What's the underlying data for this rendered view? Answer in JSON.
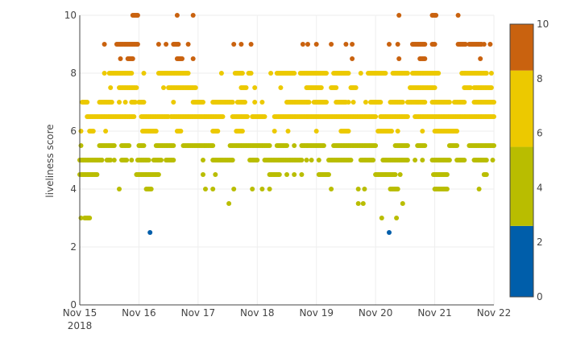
{
  "chart_data": {
    "type": "scatter",
    "title": "",
    "xlabel": "",
    "ylabel": "liveliness score",
    "x_axis": {
      "type": "date",
      "range": [
        "2018-11-15",
        "2018-11-22"
      ],
      "ticks": [
        {
          "value": "2018-11-15",
          "label": "Nov 15",
          "sublabel": "2018"
        },
        {
          "value": "2018-11-16",
          "label": "Nov 16",
          "sublabel": ""
        },
        {
          "value": "2018-11-17",
          "label": "Nov 17",
          "sublabel": ""
        },
        {
          "value": "2018-11-18",
          "label": "Nov 18",
          "sublabel": ""
        },
        {
          "value": "2018-11-19",
          "label": "Nov 19",
          "sublabel": ""
        },
        {
          "value": "2018-11-20",
          "label": "Nov 20",
          "sublabel": ""
        },
        {
          "value": "2018-11-21",
          "label": "Nov 21",
          "sublabel": ""
        },
        {
          "value": "2018-11-22",
          "label": "Nov 22",
          "sublabel": ""
        }
      ]
    },
    "y_axis": {
      "range": [
        0,
        10
      ],
      "ticks": [
        0,
        2,
        4,
        6,
        8,
        10
      ]
    },
    "grid": true,
    "marker_color_by": "y",
    "colorbar": {
      "placement": "right",
      "range": [
        0,
        10
      ],
      "ticks": [
        0,
        2,
        4,
        6,
        8,
        10
      ],
      "bands": [
        {
          "from": 0,
          "to": 2.6,
          "color": "#005eaa"
        },
        {
          "from": 2.6,
          "to": 5.5,
          "color": "#b9bd00"
        },
        {
          "from": 5.5,
          "to": 8.3,
          "color": "#ecc900"
        },
        {
          "from": 8.3,
          "to": 10,
          "color": "#c9620f"
        }
      ]
    },
    "series": [
      {
        "segments": [
          {
            "y": 10,
            "x": [
              [
                "2018-11-15 21:30",
                "2018-11-15 23:30"
              ],
              [
                "2018-11-16 15:30"
              ],
              [
                "2018-11-16 22:00"
              ],
              [
                "2018-11-20 09:30"
              ],
              [
                "2018-11-20 23:00",
                "2018-11-21 00:30"
              ],
              [
                "2018-11-21 09:30"
              ]
            ]
          },
          {
            "y": 9,
            "x": [
              [
                "2018-11-15 10:00"
              ],
              [
                "2018-11-15 15:00",
                "2018-11-15 23:59"
              ],
              [
                "2018-11-16 08:00"
              ],
              [
                "2018-11-16 11:00"
              ],
              [
                "2018-11-16 14:00",
                "2018-11-16 16:00"
              ],
              [
                "2018-11-16 20:00"
              ],
              [
                "2018-11-17 14:30"
              ],
              [
                "2018-11-17 17:30"
              ],
              [
                "2018-11-17 21:30"
              ],
              [
                "2018-11-18 18:30"
              ],
              [
                "2018-11-18 20:30"
              ],
              [
                "2018-11-19 00:00"
              ],
              [
                "2018-11-19 06:00"
              ],
              [
                "2018-11-19 12:00"
              ],
              [
                "2018-11-19 14:30"
              ],
              [
                "2018-11-20 05:30"
              ],
              [
                "2018-11-20 09:00"
              ],
              [
                "2018-11-20 15:00",
                "2018-11-20 20:00"
              ],
              [
                "2018-11-20 23:00",
                "2018-11-21 00:00"
              ],
              [
                "2018-11-21 09:30",
                "2018-11-21 12:30"
              ],
              [
                "2018-11-21 14:00",
                "2018-11-21 19:00"
              ],
              [
                "2018-11-21 20:00"
              ],
              [
                "2018-11-21 22:30"
              ]
            ]
          },
          {
            "y": 8.5,
            "x": [
              [
                "2018-11-15 16:30"
              ],
              [
                "2018-11-15 19:30",
                "2018-11-15 21:30"
              ],
              [
                "2018-11-16 15:30",
                "2018-11-16 17:30"
              ],
              [
                "2018-11-16 22:00"
              ],
              [
                "2018-11-19 14:30"
              ],
              [
                "2018-11-20 09:30"
              ],
              [
                "2018-11-20 18:00",
                "2018-11-20 20:00"
              ],
              [
                "2018-11-21 18:30"
              ]
            ]
          },
          {
            "y": 8,
            "x": [
              [
                "2018-11-15 10:00"
              ],
              [
                "2018-11-15 12:00",
                "2018-11-15 21:00"
              ],
              [
                "2018-11-16 02:00"
              ],
              [
                "2018-11-16 08:00",
                "2018-11-16 20:00"
              ],
              [
                "2018-11-17 09:30"
              ],
              [
                "2018-11-17 15:00",
                "2018-11-17 18:00"
              ],
              [
                "2018-11-17 20:30",
                "2018-11-17 21:30"
              ],
              [
                "2018-11-18 05:30"
              ],
              [
                "2018-11-18 08:00",
                "2018-11-18 15:00"
              ],
              [
                "2018-11-18 17:30",
                "2018-11-19 04:00"
              ],
              [
                "2018-11-19 07:00",
                "2018-11-19 13:00"
              ],
              [
                "2018-11-19 18:00"
              ],
              [
                "2018-11-19 21:00",
                "2018-11-20 04:00"
              ],
              [
                "2018-11-20 07:00",
                "2018-11-20 13:00"
              ],
              [
                "2018-11-20 15:00",
                "2018-11-21 01:30"
              ],
              [
                "2018-11-21 11:00",
                "2018-11-21 21:00"
              ],
              [
                "2018-11-21 23:00"
              ]
            ]
          },
          {
            "y": 7.5,
            "x": [
              [
                "2018-11-15 12:30"
              ],
              [
                "2018-11-15 16:00",
                "2018-11-15 23:00"
              ],
              [
                "2018-11-16 10:00"
              ],
              [
                "2018-11-16 12:00",
                "2018-11-16 23:00"
              ],
              [
                "2018-11-17 17:30",
                "2018-11-17 19:30"
              ],
              [
                "2018-11-17 23:00"
              ],
              [
                "2018-11-18 09:30"
              ],
              [
                "2018-11-18 20:00",
                "2018-11-19 02:00"
              ],
              [
                "2018-11-19 06:00",
                "2018-11-19 08:00"
              ],
              [
                "2018-11-19 14:00",
                "2018-11-19 16:00"
              ],
              [
                "2018-11-20 14:00",
                "2018-11-21 00:00"
              ],
              [
                "2018-11-21 12:00",
                "2018-11-21 14:30"
              ],
              [
                "2018-11-21 16:00",
                "2018-11-21 23:00"
              ]
            ]
          },
          {
            "y": 7,
            "x": [
              [
                "2018-11-15 01:00",
                "2018-11-15 03:00"
              ],
              [
                "2018-11-15 08:00",
                "2018-11-15 13:00"
              ],
              [
                "2018-11-15 16:00"
              ],
              [
                "2018-11-15 18:30"
              ],
              [
                "2018-11-15 21:00",
                "2018-11-15 22:30"
              ],
              [
                "2018-11-16 00:00",
                "2018-11-16 02:00"
              ],
              [
                "2018-11-16 14:00"
              ],
              [
                "2018-11-16 22:00",
                "2018-11-17 02:00"
              ],
              [
                "2018-11-17 06:00",
                "2018-11-17 14:00"
              ],
              [
                "2018-11-17 16:00",
                "2018-11-17 19:00"
              ],
              [
                "2018-11-17 23:00"
              ],
              [
                "2018-11-18 02:00"
              ],
              [
                "2018-11-18 12:00",
                "2018-11-18 21:00"
              ],
              [
                "2018-11-18 23:00",
                "2018-11-19 04:00"
              ],
              [
                "2018-11-19 08:00",
                "2018-11-19 12:00"
              ],
              [
                "2018-11-19 13:00"
              ],
              [
                "2018-11-19 15:00"
              ],
              [
                "2018-11-19 20:00"
              ],
              [
                "2018-11-19 22:00",
                "2018-11-20 02:00"
              ],
              [
                "2018-11-20 06:00",
                "2018-11-20 11:00"
              ],
              [
                "2018-11-20 13:00",
                "2018-11-20 20:00"
              ],
              [
                "2018-11-20 23:00",
                "2018-11-21 06:00"
              ],
              [
                "2018-11-21 08:00",
                "2018-11-21 12:00"
              ],
              [
                "2018-11-21 16:00",
                "2018-11-22 00:00"
              ]
            ]
          },
          {
            "y": 6.5,
            "x": [
              [
                "2018-11-15 03:00",
                "2018-11-15 22:00"
              ],
              [
                "2018-11-16 01:00",
                "2018-11-16 12:00"
              ],
              [
                "2018-11-16 13:00",
                "2018-11-17 10:00"
              ],
              [
                "2018-11-17 14:00",
                "2018-11-17 20:00"
              ],
              [
                "2018-11-17 22:00",
                "2018-11-18 03:00"
              ],
              [
                "2018-11-18 07:00",
                "2018-11-20 00:00"
              ],
              [
                "2018-11-20 02:00",
                "2018-11-20 13:00"
              ],
              [
                "2018-11-20 16:00",
                "2018-11-22 00:00"
              ]
            ]
          },
          {
            "y": 6,
            "x": [
              [
                "2018-11-15 00:30"
              ],
              [
                "2018-11-15 04:00",
                "2018-11-15 05:30"
              ],
              [
                "2018-11-15 10:30"
              ],
              [
                "2018-11-16 01:30",
                "2018-11-16 07:00"
              ],
              [
                "2018-11-16 15:30",
                "2018-11-16 17:00"
              ],
              [
                "2018-11-17 06:00",
                "2018-11-17 08:00"
              ],
              [
                "2018-11-17 15:30",
                "2018-11-17 18:00"
              ],
              [
                "2018-11-18 07:00"
              ],
              [
                "2018-11-18 12:30"
              ],
              [
                "2018-11-19 00:00"
              ],
              [
                "2018-11-19 10:00",
                "2018-11-19 13:00"
              ],
              [
                "2018-11-20 01:00",
                "2018-11-20 06:30"
              ],
              [
                "2018-11-20 09:00"
              ],
              [
                "2018-11-20 19:00"
              ],
              [
                "2018-11-21 00:00",
                "2018-11-21 09:00"
              ]
            ]
          },
          {
            "y": 5.5,
            "x": [
              [
                "2018-11-15 00:30"
              ],
              [
                "2018-11-15 08:00",
                "2018-11-15 14:00"
              ],
              [
                "2018-11-15 17:00",
                "2018-11-15 20:00"
              ],
              [
                "2018-11-16 00:00",
                "2018-11-16 02:00"
              ],
              [
                "2018-11-16 07:00",
                "2018-11-16 14:00"
              ],
              [
                "2018-11-16 18:00",
                "2018-11-17 06:00"
              ],
              [
                "2018-11-17 13:00",
                "2018-11-18 05:00"
              ],
              [
                "2018-11-18 08:00",
                "2018-11-18 12:00"
              ],
              [
                "2018-11-18 15:00"
              ],
              [
                "2018-11-18 18:00",
                "2018-11-19 03:00"
              ],
              [
                "2018-11-19 07:00",
                "2018-11-20 00:00"
              ],
              [
                "2018-11-20 08:00",
                "2018-11-20 13:00"
              ],
              [
                "2018-11-20 17:00",
                "2018-11-20 20:00"
              ],
              [
                "2018-11-21 06:00",
                "2018-11-21 09:00"
              ],
              [
                "2018-11-21 14:00",
                "2018-11-22 00:00"
              ]
            ]
          },
          {
            "y": 5,
            "x": [
              [
                "2018-11-15 00:00",
                "2018-11-15 09:00"
              ],
              [
                "2018-11-15 11:00",
                "2018-11-15 12:30"
              ],
              [
                "2018-11-15 14:00"
              ],
              [
                "2018-11-15 17:00",
                "2018-11-15 19:00"
              ],
              [
                "2018-11-15 21:00"
              ],
              [
                "2018-11-15 23:30",
                "2018-11-16 04:00"
              ],
              [
                "2018-11-16 06:00",
                "2018-11-16 09:00"
              ],
              [
                "2018-11-16 11:00",
                "2018-11-16 14:00"
              ],
              [
                "2018-11-17 02:00"
              ],
              [
                "2018-11-17 06:00",
                "2018-11-17 14:00"
              ],
              [
                "2018-11-17 21:00",
                "2018-11-18 00:00"
              ],
              [
                "2018-11-18 03:00",
                "2018-11-18 18:00"
              ],
              [
                "2018-11-18 20:00"
              ],
              [
                "2018-11-18 22:00"
              ],
              [
                "2018-11-19 01:00"
              ],
              [
                "2018-11-19 05:00",
                "2018-11-19 14:00"
              ],
              [
                "2018-11-19 18:00",
                "2018-11-19 23:00"
              ],
              [
                "2018-11-20 03:00",
                "2018-11-20 13:00"
              ],
              [
                "2018-11-20 16:00"
              ],
              [
                "2018-11-20 19:00"
              ],
              [
                "2018-11-20 23:00",
                "2018-11-21 06:00"
              ],
              [
                "2018-11-21 09:00",
                "2018-11-21 12:00"
              ],
              [
                "2018-11-21 16:00",
                "2018-11-21 21:00"
              ],
              [
                "2018-11-21 23:30"
              ]
            ]
          },
          {
            "y": 4.5,
            "x": [
              [
                "2018-11-15 00:00",
                "2018-11-15 07:00"
              ],
              [
                "2018-11-15 23:00",
                "2018-11-16 08:00"
              ],
              [
                "2018-11-17 02:00"
              ],
              [
                "2018-11-17 07:00"
              ],
              [
                "2018-11-18 05:00",
                "2018-11-18 09:00"
              ],
              [
                "2018-11-18 12:00"
              ],
              [
                "2018-11-18 15:00"
              ],
              [
                "2018-11-18 18:00"
              ],
              [
                "2018-11-19 01:00",
                "2018-11-19 05:00"
              ],
              [
                "2018-11-20 00:00",
                "2018-11-20 08:00"
              ],
              [
                "2018-11-20 10:00"
              ],
              [
                "2018-11-20 23:30",
                "2018-11-21 05:00"
              ],
              [
                "2018-11-21 20:00",
                "2018-11-21 21:00"
              ]
            ]
          },
          {
            "y": 4,
            "x": [
              [
                "2018-11-15 16:00"
              ],
              [
                "2018-11-16 03:00",
                "2018-11-16 05:00"
              ],
              [
                "2018-11-17 03:00"
              ],
              [
                "2018-11-17 06:00"
              ],
              [
                "2018-11-17 14:30"
              ],
              [
                "2018-11-17 22:00"
              ],
              [
                "2018-11-18 02:00"
              ],
              [
                "2018-11-18 05:00"
              ],
              [
                "2018-11-19 06:00"
              ],
              [
                "2018-11-19 17:00"
              ],
              [
                "2018-11-19 19:30"
              ],
              [
                "2018-11-20 06:00",
                "2018-11-20 09:00"
              ],
              [
                "2018-11-21 00:00",
                "2018-11-21 05:00"
              ],
              [
                "2018-11-21 18:00"
              ]
            ]
          },
          {
            "y": 3.5,
            "x": [
              [
                "2018-11-17 12:30"
              ],
              [
                "2018-11-19 17:00"
              ],
              [
                "2018-11-19 19:00"
              ],
              [
                "2018-11-20 11:00"
              ]
            ]
          },
          {
            "y": 3,
            "x": [
              [
                "2018-11-15 00:30"
              ],
              [
                "2018-11-15 02:00",
                "2018-11-15 04:00"
              ],
              [
                "2018-11-20 02:30"
              ],
              [
                "2018-11-20 08:30"
              ]
            ]
          },
          {
            "y": 2.5,
            "x": [
              [
                "2018-11-16 04:30"
              ],
              [
                "2018-11-20 05:30"
              ]
            ]
          }
        ]
      }
    ]
  }
}
